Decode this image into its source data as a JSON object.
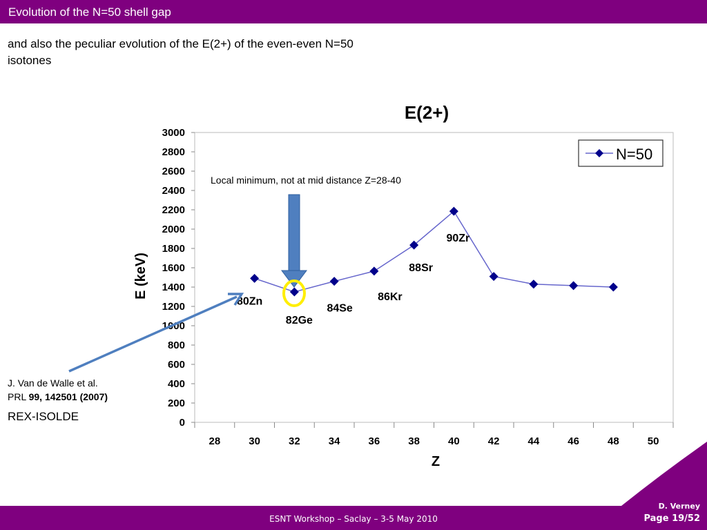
{
  "header": {
    "title": "Evolution of the N=50 shell gap"
  },
  "intro": {
    "text": "and also the peculiar evolution of the E(2+) of the even-even N=50 isotones"
  },
  "reference": {
    "authors": "J. Van de Walle et al.",
    "journal": "PRL",
    "details": "99, 142501 (2007)"
  },
  "facility": "REX-ISOLDE",
  "footer": {
    "workshop": "ESNT Workshop –   Saclay –   3-5 May 2010",
    "author": "D. Verney",
    "page": "Page 19/52"
  },
  "annotation": {
    "text": "Local minimum, not at mid distance Z=28-40"
  },
  "colors": {
    "brand": "#7f007f",
    "series": "#00008b",
    "line": "#6666cc",
    "arrow": "#4f7fbf",
    "highlight": "#ffee00"
  },
  "chart_data": {
    "type": "line",
    "title": "E(2+)",
    "xlabel": "Z",
    "ylabel": "E (keV)",
    "xlim": [
      28,
      50
    ],
    "ylim": [
      0,
      3000
    ],
    "xticks": [
      "28",
      "30",
      "32",
      "34",
      "36",
      "38",
      "40",
      "42",
      "44",
      "46",
      "48",
      "50"
    ],
    "yticks": [
      "0",
      "200",
      "400",
      "600",
      "800",
      "1000",
      "1200",
      "1400",
      "1600",
      "1800",
      "2000",
      "2200",
      "2400",
      "2600",
      "2800",
      "3000"
    ],
    "legend": {
      "position": "top-right",
      "entries": [
        "N=50"
      ]
    },
    "series": [
      {
        "name": "N=50",
        "x": [
          30,
          32,
          34,
          36,
          38,
          40,
          42,
          44,
          46,
          48
        ],
        "values": [
          1490,
          1350,
          1460,
          1565,
          1835,
          2185,
          1510,
          1430,
          1415,
          1400
        ]
      }
    ],
    "point_labels": [
      {
        "text": "80Zn",
        "x": 30
      },
      {
        "text": "82Ge",
        "x": 32
      },
      {
        "text": "84Se",
        "x": 34
      },
      {
        "text": "86Kr",
        "x": 36
      },
      {
        "text": "88Sr",
        "x": 38
      },
      {
        "text": "90Zr",
        "x": 40
      }
    ]
  }
}
